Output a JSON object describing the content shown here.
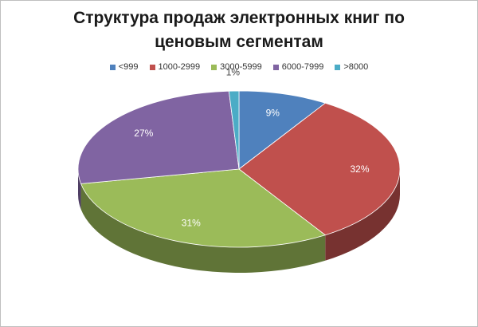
{
  "chart_data": {
    "type": "pie",
    "title_lines": [
      "Структура продаж электронных книг по",
      "ценовым сегментам"
    ],
    "categories": [
      "<999",
      "1000-2999",
      "3000-5999",
      "6000-7999",
      ">8000"
    ],
    "values": [
      9,
      32,
      31,
      27,
      1
    ],
    "data_labels": [
      "9%",
      "32%",
      "31%",
      "27%",
      "1%"
    ],
    "colors": [
      "#4F81BD",
      "#C0504D",
      "#9BBB59",
      "#8064A2",
      "#4BACC6"
    ],
    "legend_position": "top",
    "style": "3d-pie"
  }
}
